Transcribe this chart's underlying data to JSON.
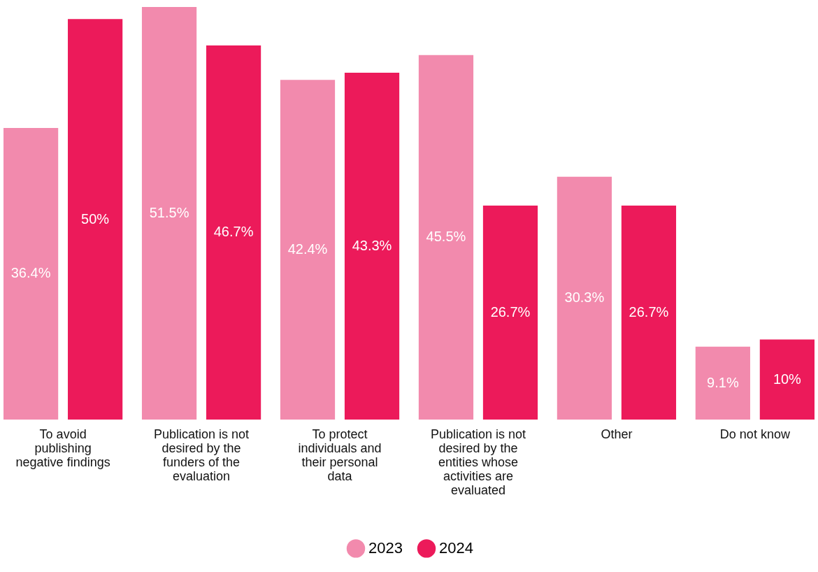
{
  "chart_data": {
    "type": "bar",
    "categories": [
      "To avoid publishing negative findings",
      "Publication is not desired by the funders of the evaluation",
      "To protect individuals and their personal data",
      "Publication is not desired by the entities whose activities are evaluated",
      "Other",
      "Do not know"
    ],
    "series": [
      {
        "name": "2023",
        "color": "#f28aad",
        "values": [
          36.4,
          51.5,
          42.4,
          45.5,
          30.3,
          9.1
        ],
        "value_labels": [
          "36.4%",
          "51.5%",
          "42.4%",
          "45.5%",
          "30.3%",
          "9.1%"
        ]
      },
      {
        "name": "2024",
        "color": "#ec1a5a",
        "values": [
          50,
          46.7,
          43.3,
          26.7,
          26.7,
          10
        ],
        "value_labels": [
          "50%",
          "46.7%",
          "43.3%",
          "26.7%",
          "26.7%",
          "10%"
        ]
      }
    ],
    "legend": "bottom"
  }
}
